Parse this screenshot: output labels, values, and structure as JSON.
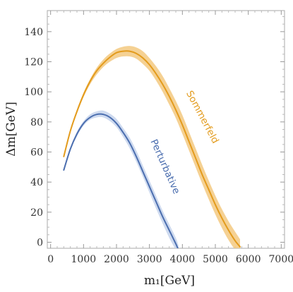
{
  "chart_data": {
    "type": "line",
    "xlabel": "m₁[GeV]",
    "ylabel": "Δm[GeV]",
    "xlim": [
      0,
      7000
    ],
    "ylim": [
      0,
      150
    ],
    "xticks": [
      "0",
      "1000",
      "2000",
      "3000",
      "4000",
      "5000",
      "6000",
      "7000"
    ],
    "yticks": [
      "0",
      "20",
      "40",
      "60",
      "80",
      "100",
      "120",
      "140"
    ],
    "grid": false,
    "legend": "none (series labelled inline)",
    "series": [
      {
        "name": "Sommerfeld",
        "color": "#e39b1c",
        "band_color": "#f3c980",
        "x": [
          400,
          600,
          800,
          1000,
          1200,
          1400,
          1600,
          1800,
          2000,
          2200,
          2400,
          2600,
          2800,
          3000,
          3200,
          3400,
          3600,
          3800,
          4000,
          4200,
          4400,
          4600,
          4800,
          5000,
          5200,
          5400,
          5600,
          5750
        ],
        "y": [
          57,
          74,
          87,
          98,
          107,
          114,
          119,
          123,
          126,
          127,
          127,
          125.5,
          122.5,
          118,
          112,
          105,
          97,
          88,
          78,
          67,
          56,
          45,
          35,
          25,
          16,
          8,
          1,
          -3
        ],
        "y_low": [
          56,
          73,
          85.5,
          96.5,
          105,
          111.5,
          116.5,
          120,
          122.5,
          123.5,
          123.5,
          122,
          118.5,
          114,
          107.5,
          100,
          91.5,
          82.5,
          72,
          61,
          50,
          39,
          28.5,
          18.5,
          9.5,
          1.5,
          -5,
          -8
        ],
        "y_high": [
          58,
          75,
          88,
          99.5,
          108.5,
          116,
          121.5,
          125.5,
          128.5,
          130,
          130.5,
          129.5,
          127,
          122.5,
          117,
          110.5,
          102.5,
          94,
          84.5,
          73.5,
          62.5,
          51.5,
          41,
          31,
          22,
          14,
          7,
          2
        ]
      },
      {
        "name": "Perturbative",
        "color": "#4b6eaf",
        "band_color": "#c5d3ec",
        "x": [
          400,
          600,
          800,
          1000,
          1200,
          1400,
          1600,
          1800,
          2000,
          2200,
          2400,
          2600,
          2800,
          3000,
          3200,
          3400,
          3600,
          3800,
          3880
        ],
        "y": [
          48,
          62,
          72,
          79,
          83,
          85,
          85,
          83,
          79,
          73,
          66,
          57,
          47,
          37,
          27,
          17,
          8,
          -1,
          -5
        ],
        "y_low": [
          47.5,
          61,
          70.5,
          77.5,
          81.5,
          83,
          83,
          80.5,
          76.5,
          70,
          62.5,
          53.5,
          43.5,
          33,
          22.5,
          12.5,
          3,
          -5,
          -8
        ],
        "y_high": [
          48.5,
          63,
          73.5,
          80.5,
          85,
          87,
          87.5,
          85.5,
          82,
          76,
          69.5,
          61,
          51,
          41,
          31,
          21,
          12,
          3,
          -2
        ]
      }
    ]
  }
}
